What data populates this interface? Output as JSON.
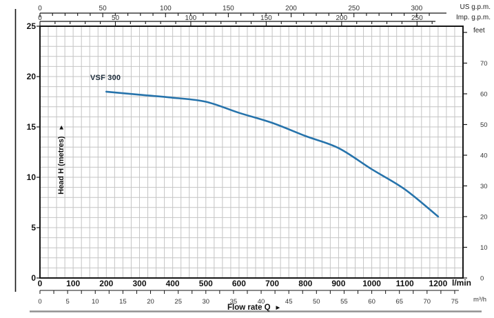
{
  "chart_data": {
    "type": "line",
    "title": "",
    "series": [
      {
        "name": "VSF 300",
        "color": "#2673ab",
        "x_lmin": [
          200,
          300,
          400,
          500,
          600,
          700,
          800,
          900,
          1000,
          1100,
          1200
        ],
        "y_m": [
          18.5,
          18.2,
          17.9,
          17.5,
          16.4,
          15.4,
          14.1,
          12.9,
          10.8,
          8.8,
          6.1
        ]
      }
    ],
    "axes": {
      "x_lmin": {
        "unit_label": "l/min",
        "range": [
          0,
          1275
        ],
        "label_ticks": [
          0,
          100,
          200,
          300,
          400,
          500,
          600,
          700,
          800,
          900,
          1000,
          1100,
          1200
        ],
        "grid_step": 25
      },
      "x_m3h": {
        "unit_label": "m³/h",
        "label_ticks": [
          0,
          5,
          10,
          15,
          20,
          25,
          30,
          35,
          40,
          45,
          50,
          55,
          60,
          65,
          70,
          75
        ],
        "minor_step": 2.5,
        "minor_max": 75,
        "lmin_per_unit": 16.6667
      },
      "x_us_gpm": {
        "unit_label": "US g.p.m.",
        "label_ticks": [
          0,
          50,
          100,
          150,
          200,
          250,
          300
        ],
        "minor_step": 10,
        "minor_max": 310,
        "lmin_per_unit": 3.785
      },
      "x_imp_gpm": {
        "unit_label": "Imp. g.p.m.",
        "label_ticks": [
          0,
          50,
          100,
          150,
          200,
          250
        ],
        "minor_step": 10,
        "minor_max": 260,
        "lmin_per_unit": 4.546
      },
      "y_metres": {
        "axis_label": "Head H (metres)",
        "range": [
          0,
          25
        ],
        "label_ticks": [
          0,
          5,
          10,
          15,
          20,
          25
        ],
        "grid_step": 1,
        "tick_step": 5
      },
      "y_feet": {
        "unit_label": "feet",
        "label_ticks": [
          0,
          10,
          20,
          30,
          40,
          50,
          60,
          70
        ],
        "minor_max": 80,
        "metres_per_unit": 0.3048
      }
    },
    "flow_axis_label": "Flow rate Q",
    "arrow_right": "▶",
    "colors": {
      "curve": "#2673ab",
      "grid": "#c4c4c4",
      "axis": "#141414",
      "series_label": "#1c2b3a",
      "tick_text_small": "#333333",
      "tick_text_big": "#111111",
      "baseline_rule": "#909090"
    }
  }
}
